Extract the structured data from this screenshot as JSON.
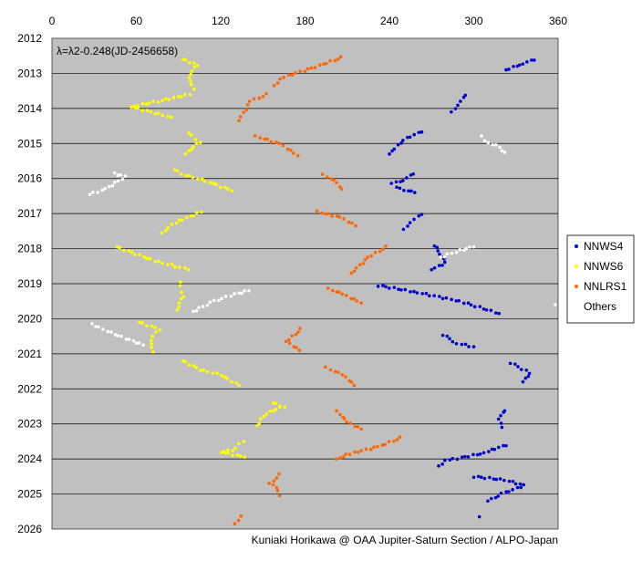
{
  "chart_data": {
    "type": "scatter",
    "annotation": "λ=λ2-0.248(JD-2456658)",
    "credit": "Kuniaki Horikawa @ OAA Jupiter-Saturn Section / ALPO-Japan",
    "x_axis": {
      "ticks": [
        0,
        60,
        120,
        180,
        240,
        300,
        360
      ],
      "range": [
        0,
        360
      ],
      "position": "top"
    },
    "y_axis": {
      "ticks": [
        2012,
        2013,
        2014,
        2015,
        2016,
        2017,
        2018,
        2019,
        2020,
        2021,
        2022,
        2023,
        2024,
        2025,
        2026
      ],
      "range": [
        2012,
        2026
      ],
      "reversed": true
    },
    "grid": "horizontal",
    "plot_background": "#c0c0c0",
    "legend_placement": "right",
    "series": [
      {
        "name": "NNWS4",
        "color": "#0000cc",
        "segments": [
          [
            [
              343,
              2012.6
            ],
            [
              333,
              2012.75
            ],
            [
              323,
              2012.9
            ]
          ],
          [
            [
              294,
              2013.6
            ],
            [
              289,
              2013.9
            ],
            [
              284,
              2014.1
            ]
          ],
          [
            [
              263,
              2014.65
            ],
            [
              250,
              2014.9
            ],
            [
              240,
              2015.3
            ]
          ],
          [
            [
              257,
              2015.85
            ],
            [
              250,
              2016.05
            ],
            [
              242,
              2016.15
            ],
            [
              248,
              2016.3
            ],
            [
              258,
              2016.4
            ]
          ],
          [
            [
              263,
              2017.0
            ],
            [
              255,
              2017.25
            ],
            [
              250,
              2017.45
            ]
          ],
          [
            [
              272,
              2017.9
            ],
            [
              276,
              2018.15
            ],
            [
              280,
              2018.4
            ],
            [
              270,
              2018.6
            ]
          ],
          [
            [
              232,
              2019.05
            ],
            [
              260,
              2019.25
            ],
            [
              290,
              2019.5
            ],
            [
              318,
              2019.85
            ]
          ],
          [
            [
              278,
              2020.45
            ],
            [
              288,
              2020.7
            ],
            [
              300,
              2020.8
            ]
          ],
          [
            [
              326,
              2021.25
            ],
            [
              340,
              2021.55
            ],
            [
              335,
              2021.8
            ]
          ],
          [
            [
              322,
              2022.6
            ],
            [
              318,
              2022.85
            ],
            [
              320,
              2023.1
            ]
          ],
          [
            [
              323,
              2023.6
            ],
            [
              305,
              2023.85
            ],
            [
              280,
              2024.05
            ],
            [
              275,
              2024.2
            ]
          ],
          [
            [
              300,
              2024.5
            ],
            [
              322,
              2024.6
            ],
            [
              336,
              2024.75
            ],
            [
              320,
              2025.0
            ],
            [
              310,
              2025.2
            ]
          ],
          [
            [
              304,
              2025.65
            ]
          ]
        ]
      },
      {
        "name": "NNWS6",
        "color": "#ffff00",
        "segments": [
          [
            [
              93,
              2012.6
            ],
            [
              103,
              2012.75
            ],
            [
              97,
              2013.1
            ],
            [
              101,
              2013.45
            ]
          ],
          [
            [
              98,
              2013.6
            ],
            [
              75,
              2013.8
            ],
            [
              56,
              2013.95
            ],
            [
              70,
              2014.1
            ],
            [
              85,
              2014.25
            ]
          ],
          [
            [
              97,
              2014.7
            ],
            [
              105,
              2014.95
            ],
            [
              95,
              2015.3
            ]
          ],
          [
            [
              87,
              2015.75
            ],
            [
              95,
              2015.9
            ],
            [
              112,
              2016.1
            ],
            [
              128,
              2016.35
            ]
          ],
          [
            [
              106,
              2016.95
            ],
            [
              88,
              2017.25
            ],
            [
              78,
              2017.55
            ]
          ],
          [
            [
              46,
              2017.95
            ],
            [
              73,
              2018.35
            ],
            [
              97,
              2018.6
            ]
          ],
          [
            [
              91,
              2018.95
            ],
            [
              93,
              2019.35
            ],
            [
              89,
              2019.75
            ]
          ],
          [
            [
              62,
              2020.1
            ],
            [
              76,
              2020.3
            ],
            [
              70,
              2020.6
            ],
            [
              72,
              2020.95
            ]
          ],
          [
            [
              93,
              2021.2
            ],
            [
              105,
              2021.45
            ],
            [
              120,
              2021.6
            ],
            [
              133,
              2021.9
            ]
          ],
          [
            [
              157,
              2022.4
            ],
            [
              165,
              2022.5
            ],
            [
              152,
              2022.7
            ],
            [
              146,
              2023.05
            ]
          ],
          [
            [
              136,
              2023.5
            ],
            [
              128,
              2023.75
            ],
            [
              120,
              2023.8
            ],
            [
              137,
              2023.95
            ]
          ]
        ]
      },
      {
        "name": "NNLRS1",
        "color": "#ff6600",
        "segments": [
          [
            [
              206,
              2012.55
            ],
            [
              185,
              2012.85
            ],
            [
              165,
              2013.1
            ],
            [
              158,
              2013.35
            ]
          ],
          [
            [
              153,
              2013.6
            ],
            [
              141,
              2013.8
            ],
            [
              133,
              2014.35
            ]
          ],
          [
            [
              145,
              2014.8
            ],
            [
              162,
              2015.0
            ],
            [
              175,
              2015.35
            ]
          ],
          [
            [
              193,
              2015.9
            ],
            [
              201,
              2016.05
            ],
            [
              206,
              2016.3
            ]
          ],
          [
            [
              189,
              2016.95
            ],
            [
              205,
              2017.1
            ],
            [
              216,
              2017.35
            ]
          ],
          [
            [
              238,
              2017.95
            ],
            [
              225,
              2018.25
            ],
            [
              213,
              2018.7
            ]
          ],
          [
            [
              197,
              2019.15
            ],
            [
              207,
              2019.3
            ],
            [
              220,
              2019.55
            ]
          ],
          [
            [
              177,
              2020.3
            ],
            [
              167,
              2020.65
            ],
            [
              176,
              2020.9
            ]
          ],
          [
            [
              195,
              2021.4
            ],
            [
              207,
              2021.6
            ],
            [
              215,
              2021.9
            ]
          ],
          [
            [
              203,
              2022.65
            ],
            [
              210,
              2022.95
            ],
            [
              220,
              2023.15
            ]
          ],
          [
            [
              248,
              2023.4
            ],
            [
              232,
              2023.65
            ],
            [
              212,
              2023.85
            ],
            [
              202,
              2024.0
            ]
          ],
          [
            [
              162,
              2024.45
            ],
            [
              155,
              2024.7
            ],
            [
              160,
              2024.8
            ],
            [
              162,
              2025.05
            ]
          ],
          [
            [
              135,
              2025.65
            ],
            [
              130,
              2025.85
            ]
          ]
        ]
      },
      {
        "name": "Others",
        "color": "#ffffff",
        "segments": [
          [
            [
              305,
              2014.8
            ],
            [
              310,
              2015.0
            ],
            [
              316,
              2015.05
            ],
            [
              322,
              2015.25
            ]
          ],
          [
            [
              44,
              2015.85
            ],
            [
              52,
              2015.95
            ],
            [
              38,
              2016.3
            ],
            [
              27,
              2016.45
            ]
          ],
          [
            [
              276,
              2018.25
            ],
            [
              290,
              2018.05
            ],
            [
              300,
              2017.95
            ]
          ],
          [
            [
              358,
              2019.6
            ]
          ],
          [
            [
              100,
              2019.8
            ],
            [
              115,
              2019.5
            ],
            [
              130,
              2019.3
            ],
            [
              140,
              2019.2
            ]
          ],
          [
            [
              28,
              2020.15
            ],
            [
              42,
              2020.4
            ],
            [
              55,
              2020.6
            ],
            [
              65,
              2020.75
            ]
          ]
        ]
      }
    ]
  }
}
